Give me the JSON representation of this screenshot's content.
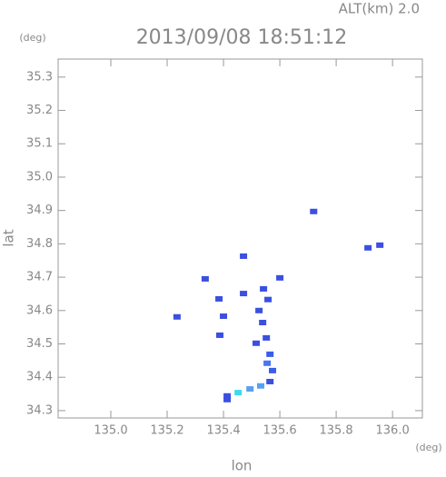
{
  "chart_data": {
    "type": "scatter",
    "header": "ALT(km) 2.0",
    "title": "2013/09/08 18:51:12",
    "y_unit": "(deg)",
    "x_unit": "(deg)",
    "xlabel": "lon",
    "ylabel": "lat",
    "xlim": [
      134.813,
      136.106
    ],
    "ylim": [
      34.278,
      35.354
    ],
    "xticks": [
      {
        "value": 135.0,
        "label": "135.0"
      },
      135.2,
      135.4,
      135.6,
      135.8,
      {
        "value": 136.0,
        "label": "136.0"
      }
    ],
    "yticks": [
      {
        "value": 34.3,
        "label": "34.3"
      },
      34.4,
      34.5,
      34.6,
      34.7,
      34.8,
      34.9,
      {
        "value": 35.0,
        "label": "35.0"
      },
      35.1,
      35.2,
      35.3
    ],
    "x": [
      135.72,
      135.913,
      135.955,
      135.235,
      135.335,
      135.6,
      135.384,
      135.4,
      135.387,
      135.471,
      135.542,
      135.558,
      135.526,
      135.539,
      135.552,
      135.516,
      135.565,
      135.555,
      135.574,
      135.565,
      135.413,
      135.452,
      135.494,
      135.532,
      135.413,
      135.471
    ],
    "values": [
      34.897,
      34.788,
      34.796,
      34.581,
      34.695,
      34.698,
      34.635,
      34.583,
      34.526,
      34.651,
      34.665,
      34.633,
      34.6,
      34.564,
      34.518,
      34.502,
      34.469,
      34.442,
      34.42,
      34.387,
      34.344,
      34.354,
      34.365,
      34.374,
      34.333,
      34.763
    ],
    "point_colors": [
      "#3b4fe0",
      "#3b4fe0",
      "#3b4fe0",
      "#3b4fe0",
      "#3b4fe0",
      "#3b4fe0",
      "#3b4fe0",
      "#3b4fe0",
      "#3b4fe0",
      "#3b4fe0",
      "#3b4fe0",
      "#3b4fe0",
      "#3b4fe0",
      "#3b4fe0",
      "#3b4fe0",
      "#3b4fe0",
      "#3a5ee8",
      "#4a74f0",
      "#3a5ee8",
      "#3b4fe0",
      "#3b4fe0",
      "#40d8f0",
      "#5aa0f0",
      "#5aa0f0",
      "#3b4fe0",
      "#3b4fe0"
    ]
  }
}
